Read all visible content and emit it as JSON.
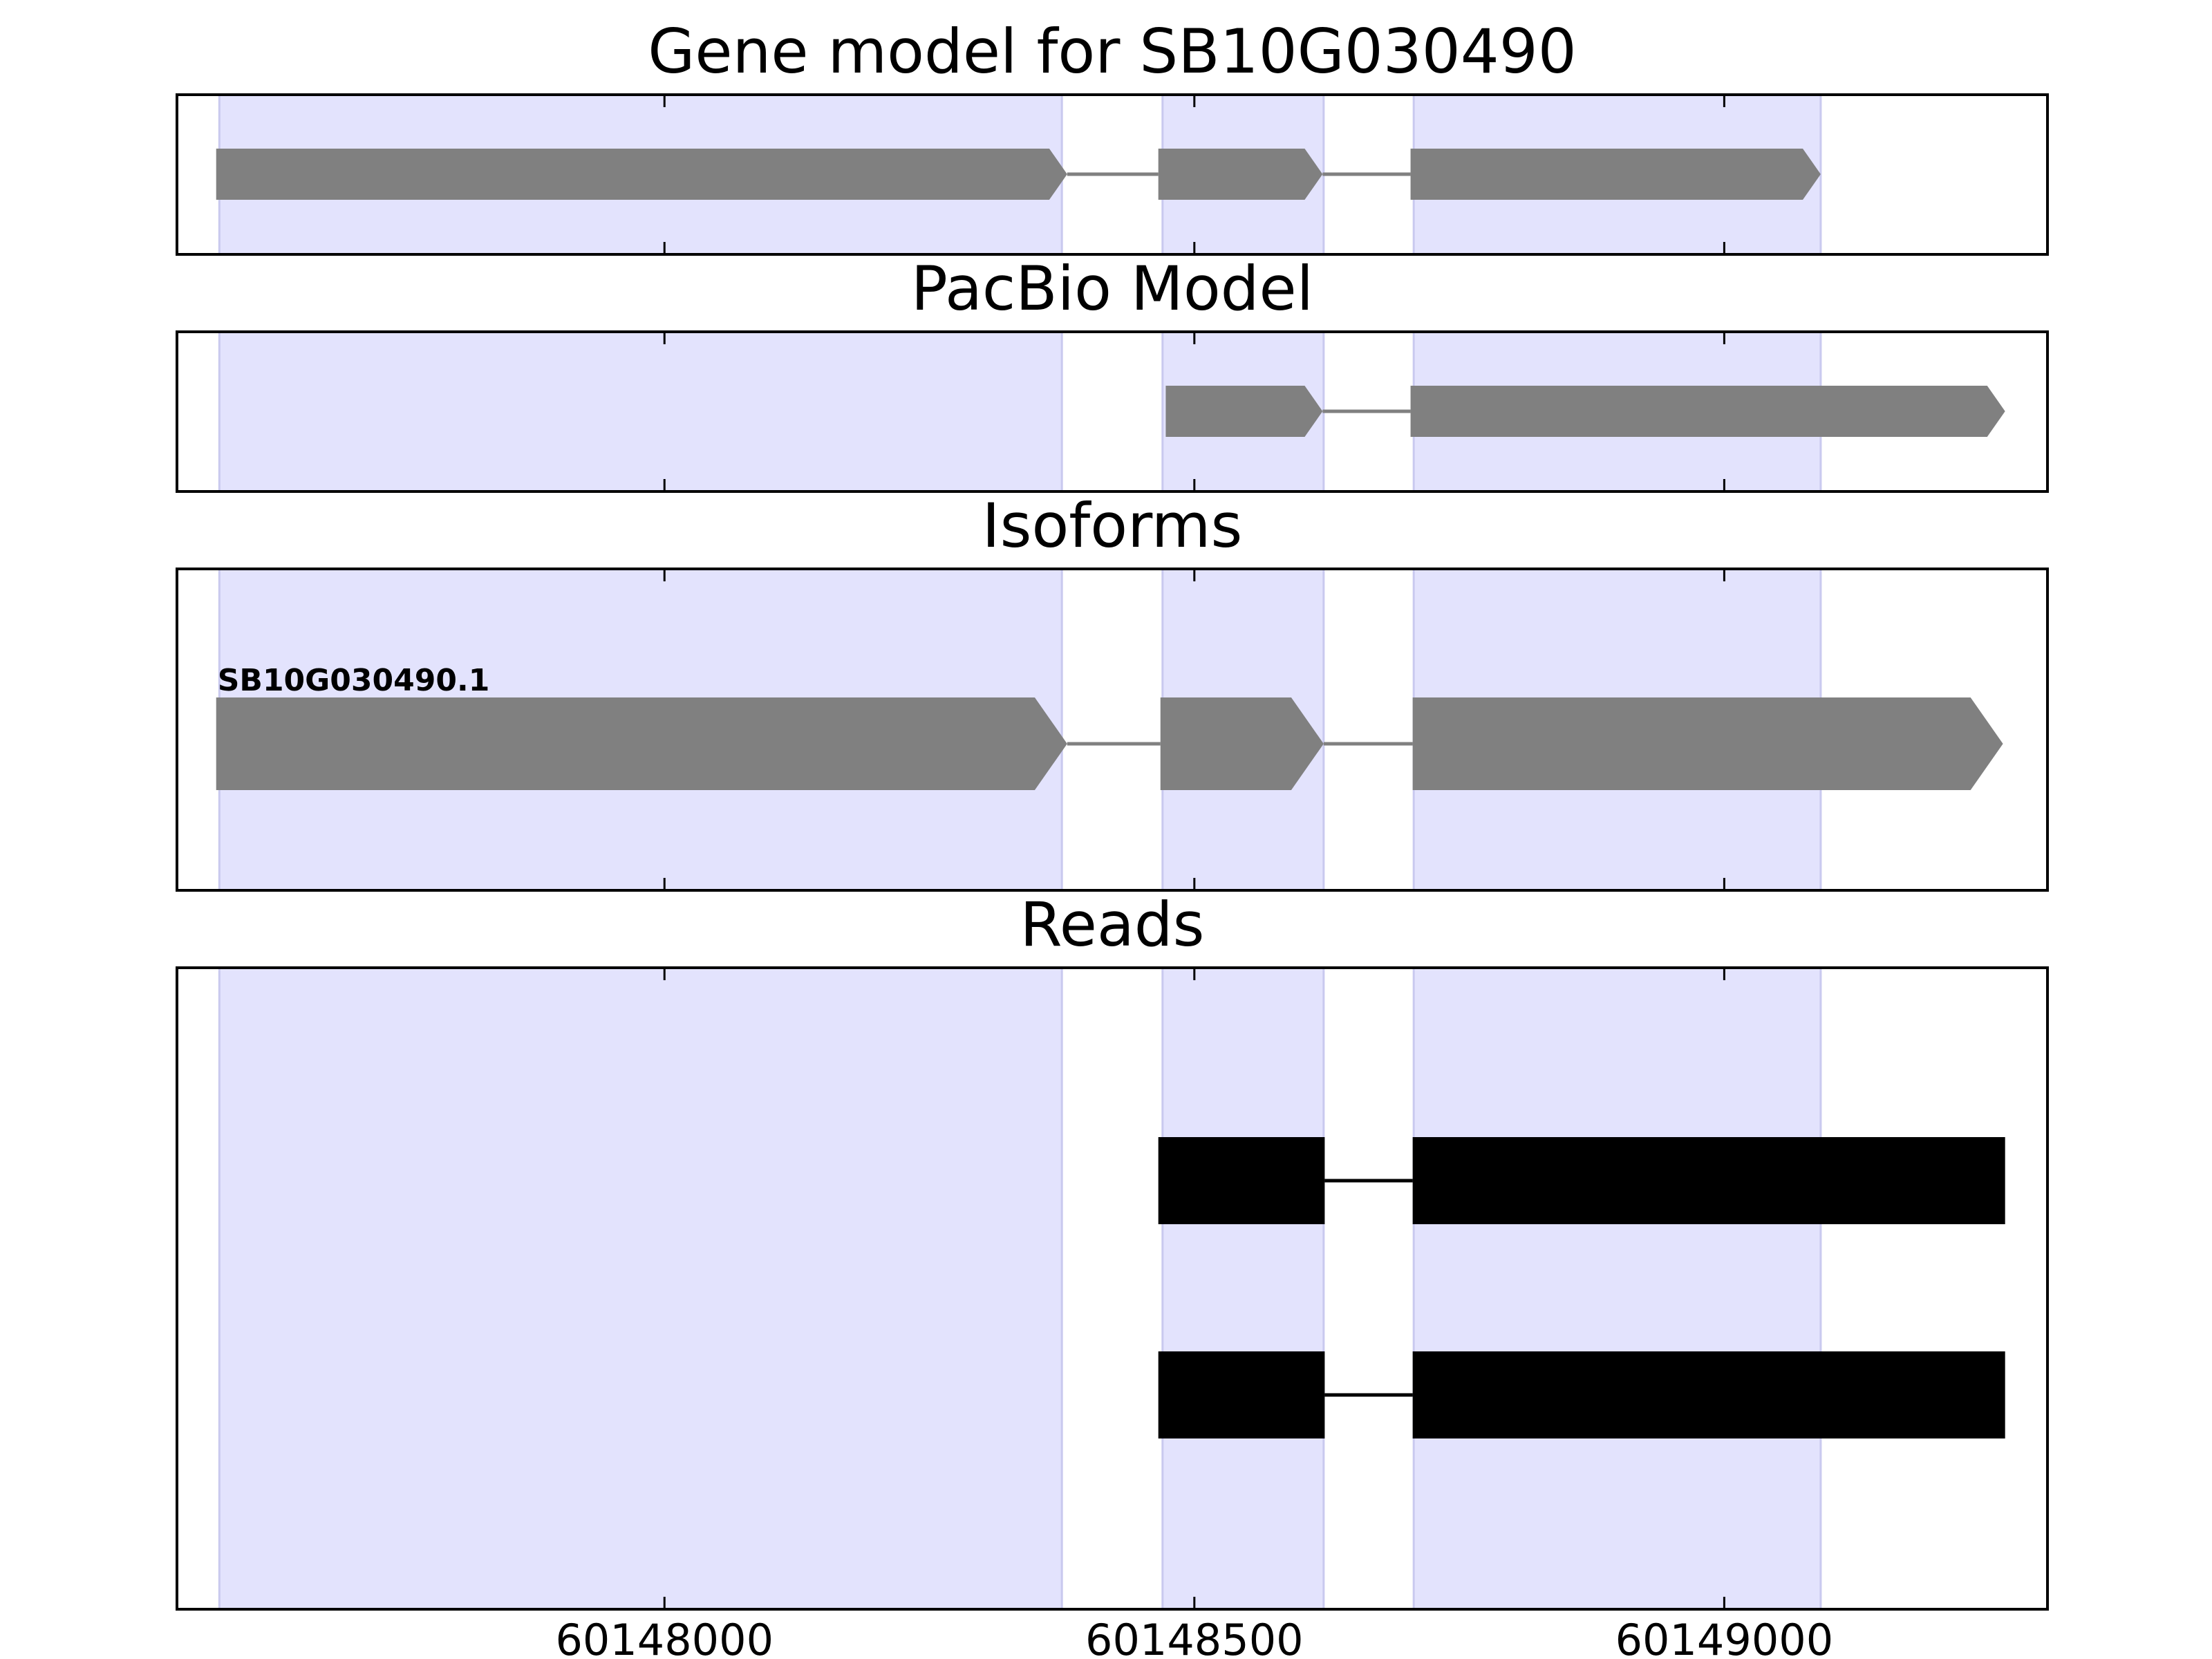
{
  "chart_data": {
    "type": "gene-track",
    "x_ticks": [
      60148000,
      60148500,
      60149000
    ],
    "x_tick_labels": [
      "60148000",
      "60148500",
      "60149000"
    ],
    "xlim": [
      60147540,
      60149305
    ],
    "exon_regions": [
      [
        60147580,
        60148375
      ],
      [
        60148470,
        60148622
      ],
      [
        60148707,
        60149091
      ]
    ],
    "colors": {
      "feature": "#808080",
      "read": "#000000",
      "exon_region": "#e3e3fd",
      "axes": "#000000"
    },
    "panels": [
      {
        "key": "gene_model",
        "title": "Gene model for SB10G030490",
        "features": [
          {
            "exons": [
              [
                60147577,
                60148380
              ],
              [
                60148466,
                60148621
              ],
              [
                60148704,
                60149091
              ]
            ],
            "strand": "+"
          }
        ]
      },
      {
        "key": "pacbio_model",
        "title": "PacBio Model",
        "features": [
          {
            "exons": [
              [
                60148473,
                60148621
              ],
              [
                60148704,
                60149265
              ]
            ],
            "strand": "+"
          }
        ]
      },
      {
        "key": "isoforms",
        "title": "Isoforms",
        "features": [
          {
            "label": "SB10G030490.1",
            "exons": [
              [
                60147577,
                60148380
              ],
              [
                60148468,
                60148622
              ],
              [
                60148706,
                60149263
              ]
            ],
            "strand": "+"
          }
        ]
      },
      {
        "key": "reads",
        "title": "Reads",
        "features": [
          {
            "exons": [
              [
                60148466,
                60148623
              ],
              [
                60148706,
                60149265
              ]
            ]
          },
          {
            "exons": [
              [
                60148466,
                60148623
              ],
              [
                60148706,
                60149265
              ]
            ]
          }
        ]
      }
    ]
  }
}
